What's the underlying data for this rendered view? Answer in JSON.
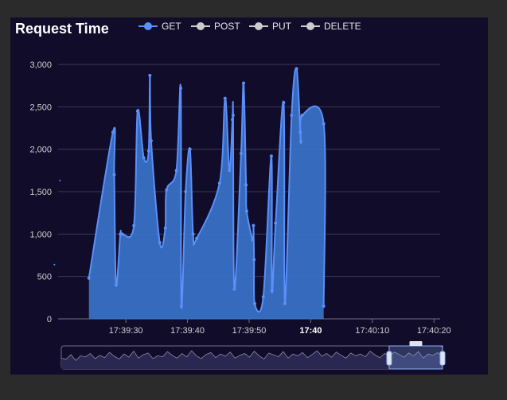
{
  "chart_data": {
    "type": "area",
    "title": "Request Time",
    "legend": {
      "position": "top",
      "items": [
        {
          "name": "GET",
          "active": true,
          "color": "#5b8ff9"
        },
        {
          "name": "POST",
          "active": false,
          "color": "#cccccc"
        },
        {
          "name": "PUT",
          "active": false,
          "color": "#cccccc"
        },
        {
          "name": "DELETE",
          "active": false,
          "color": "#cccccc"
        }
      ]
    },
    "x_ticks": [
      "17:39:30",
      "17:39:40",
      "17:39:50",
      "17:40",
      "17:40:10",
      "17:40:20"
    ],
    "x_tick_bold": [
      false,
      false,
      false,
      true,
      false,
      false
    ],
    "y_ticks": [
      "0",
      "500",
      "1,000",
      "1,500",
      "2,000",
      "2,500",
      "3,000"
    ],
    "ylim": [
      0,
      3000
    ],
    "xlim": [
      "17:39:19",
      "17:40:21"
    ],
    "grid": true,
    "series": [
      {
        "name": "GET",
        "color": "#5b8ff9",
        "fill": "#3b74cc",
        "points": [
          [
            "17:39:24.0",
            480
          ],
          [
            "17:39:27.9",
            2200
          ],
          [
            "17:39:28.1",
            1700
          ],
          [
            "17:39:28.4",
            400
          ],
          [
            "17:39:29.1",
            1000
          ],
          [
            "17:39:29.4",
            1000
          ],
          [
            "17:39:31.3",
            1100
          ],
          [
            "17:39:31.9",
            2450
          ],
          [
            "17:39:32.9",
            1900
          ],
          [
            "17:39:33.7",
            1980
          ],
          [
            "17:39:33.9",
            2870
          ],
          [
            "17:39:34.1",
            2100
          ],
          [
            "17:39:35.5",
            900
          ],
          [
            "17:39:36.4",
            1070
          ],
          [
            "17:39:36.6",
            1520
          ],
          [
            "17:39:38.2",
            1750
          ],
          [
            "17:39:38.9",
            2720
          ],
          [
            "17:39:39.0",
            150
          ],
          [
            "17:39:39.7",
            1500
          ],
          [
            "17:39:40.4",
            2000
          ],
          [
            "17:39:40.9",
            1000
          ],
          [
            "17:39:41.5",
            950
          ],
          [
            "17:39:45.2",
            1600
          ],
          [
            "17:39:46.1",
            2600
          ],
          [
            "17:39:46.8",
            1750
          ],
          [
            "17:39:47.3",
            2350
          ],
          [
            "17:39:47.4",
            2400
          ],
          [
            "17:39:47.6",
            350
          ],
          [
            "17:39:48.7",
            1950
          ],
          [
            "17:39:49.1",
            2780
          ],
          [
            "17:39:49.5",
            1580
          ],
          [
            "17:39:49.6",
            1270
          ],
          [
            "17:39:50.6",
            930
          ],
          [
            "17:39:50.7",
            1100
          ],
          [
            "17:39:50.8",
            700
          ],
          [
            "17:39:50.9",
            180
          ],
          [
            "17:39:52.3",
            260
          ],
          [
            "17:39:53.6",
            1920
          ],
          [
            "17:39:53.7",
            330
          ],
          [
            "17:39:54.3",
            1130
          ],
          [
            "17:39:55.6",
            2550
          ],
          [
            "17:39:55.8",
            180
          ],
          [
            "17:39:56.9",
            2400
          ],
          [
            "17:39:57.7",
            2950
          ],
          [
            "17:39:58.3",
            2200
          ],
          [
            "17:39:58.4",
            2090
          ],
          [
            "17:39:58.6",
            2400
          ],
          [
            "17:40:02.1",
            2300
          ],
          [
            "17:40:02.1",
            150
          ]
        ]
      }
    ],
    "outlier_points": [
      [
        "17:39:19.3",
        1630
      ],
      [
        "17:39:18.4",
        640
      ]
    ],
    "overview_values": [
      40,
      35,
      55,
      30,
      50,
      45,
      60,
      38,
      52,
      42,
      65,
      48,
      36,
      58,
      44,
      70,
      40,
      55,
      62,
      38,
      50,
      46,
      68,
      52,
      40,
      60,
      45,
      72,
      50,
      38,
      56,
      64,
      42,
      58,
      48,
      66,
      40,
      52,
      60,
      44,
      70,
      50,
      36,
      62,
      54,
      46,
      68,
      40,
      58,
      50,
      64,
      42,
      56,
      72,
      48,
      60,
      44,
      66,
      52,
      40,
      62,
      50,
      58,
      46,
      70,
      54,
      42,
      60,
      48,
      66,
      56,
      44,
      62,
      50,
      68,
      40,
      58,
      52,
      64,
      46
    ],
    "zoom_range": [
      0.86,
      1.0
    ]
  }
}
